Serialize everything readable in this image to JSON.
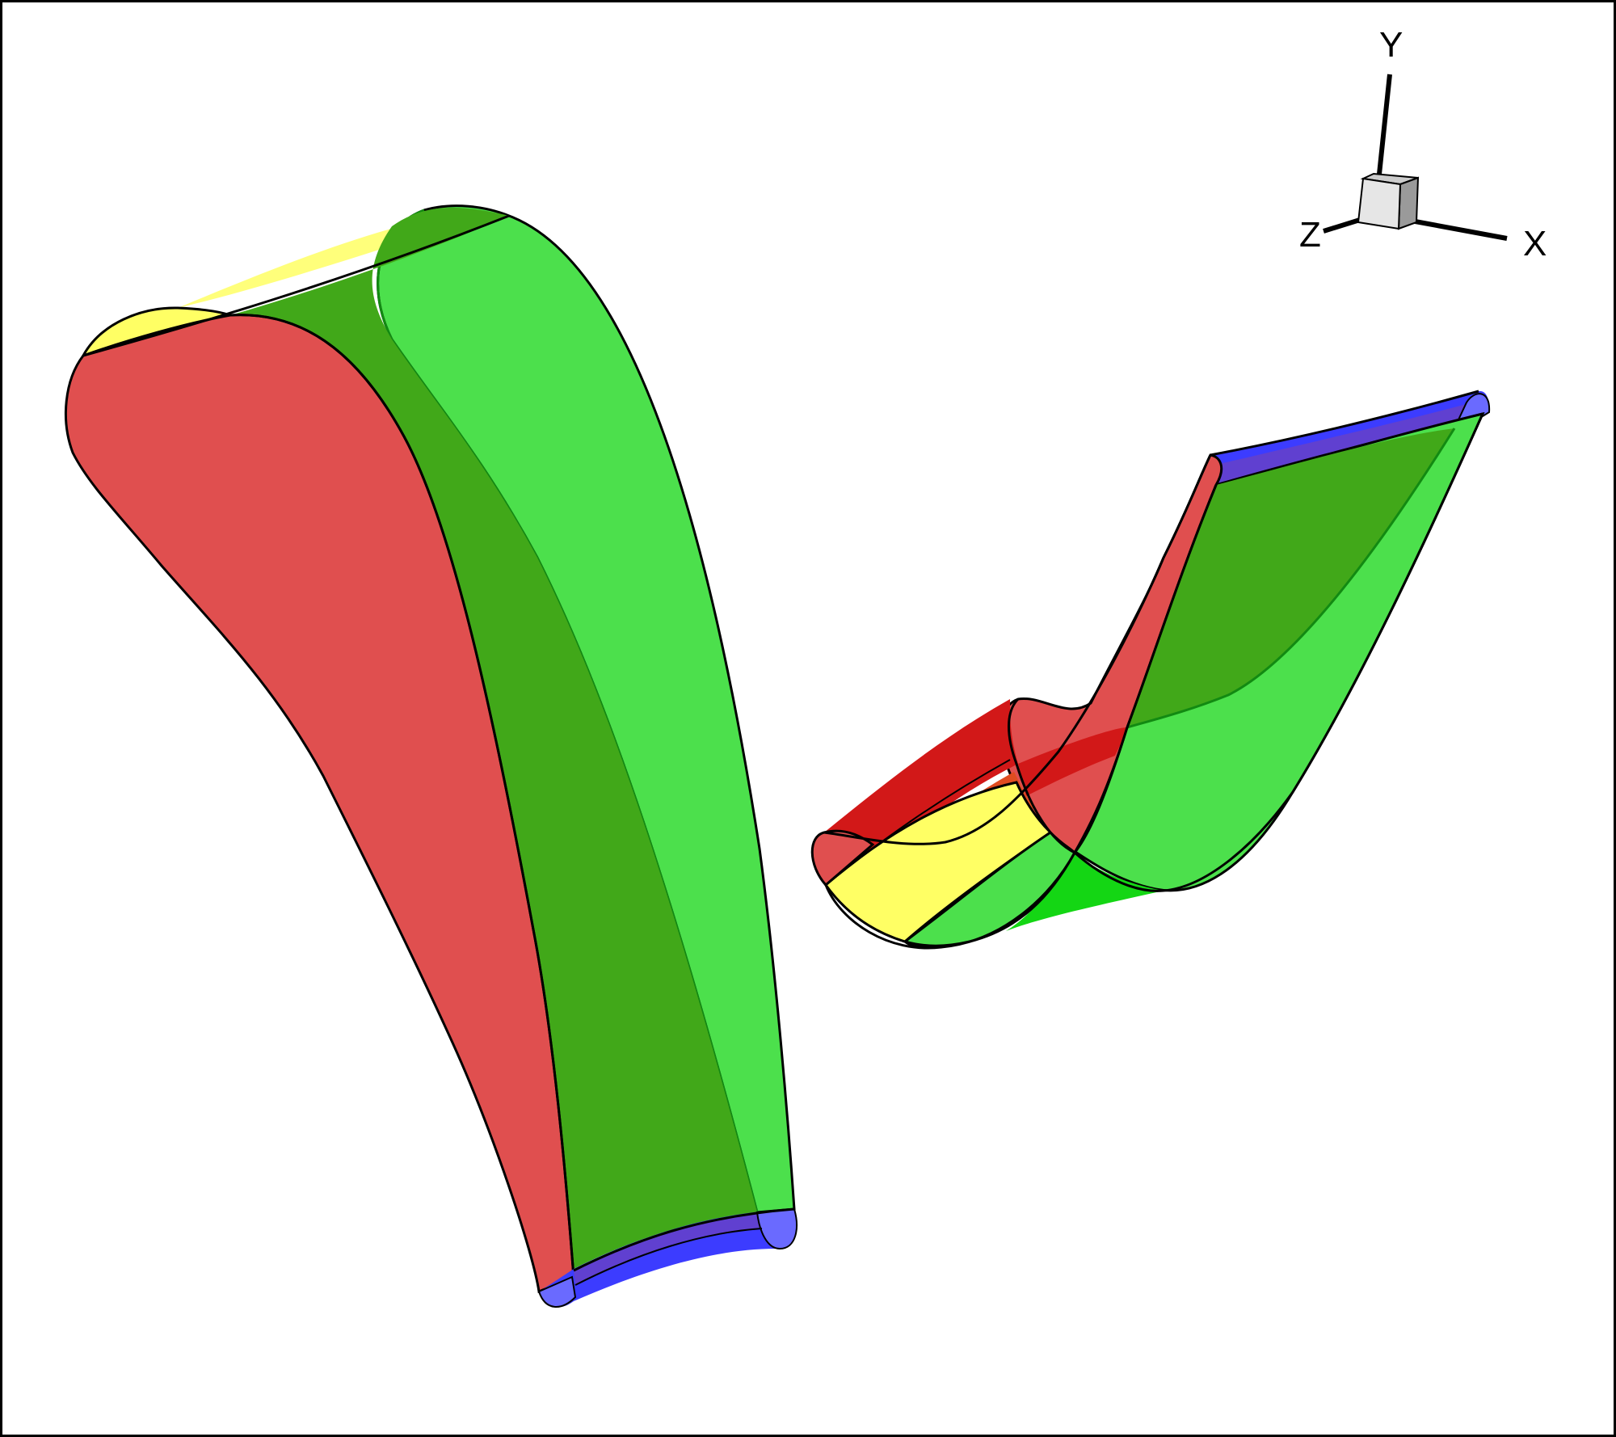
{
  "colors": {
    "red": "#e04f4f",
    "dark_red": "#d21818",
    "green": "#4ce04c",
    "dark_green": "#41a819",
    "bright_green": "#14d614",
    "yellow": "#ffff64",
    "blue": "#3c3cff",
    "light_blue": "#6a6aff",
    "purple": "#6040d0",
    "orange": "#df4c20",
    "outline": "#000000",
    "background": "#ffffff"
  },
  "axis_triad": {
    "labels": {
      "x": "X",
      "y": "Y",
      "z": "Z"
    },
    "cube_colors": {
      "front": "#e6e6e6",
      "top": "#cccccc",
      "side": "#9a9a9a"
    }
  },
  "objects": [
    {
      "name": "left-blade",
      "surfaces": [
        "red",
        "dark_green",
        "green",
        "yellow",
        "blue"
      ]
    },
    {
      "name": "right-blade",
      "surfaces": [
        "red",
        "dark_green",
        "green",
        "yellow",
        "blue",
        "orange"
      ]
    }
  ]
}
